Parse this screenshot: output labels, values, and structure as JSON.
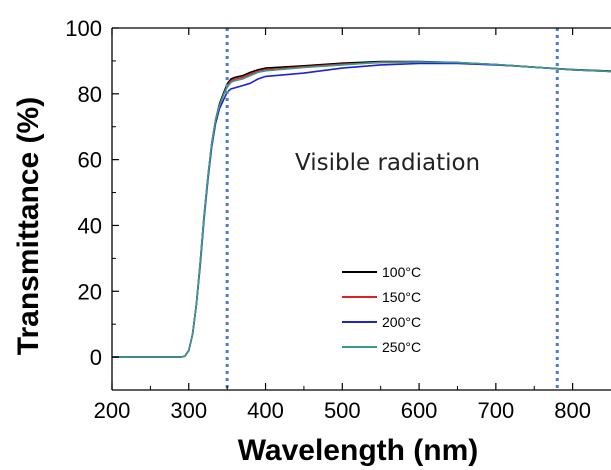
{
  "chart_data": {
    "type": "line",
    "title": "",
    "xlabel": "Wavelength (nm)",
    "ylabel": "Transmittance (%)",
    "xlim": [
      200,
      850
    ],
    "ylim": [
      -10,
      100
    ],
    "x_ticks": [
      200,
      300,
      400,
      500,
      600,
      700,
      800
    ],
    "x_tick_labels": [
      "200",
      "300",
      "400",
      "500",
      "600",
      "700",
      "800"
    ],
    "y_ticks": [
      0,
      20,
      40,
      60,
      80,
      100
    ],
    "y_tick_labels": [
      "0",
      "20",
      "40",
      "60",
      "80",
      "100"
    ],
    "grid": false,
    "legend_position": "lower-center",
    "annotation": "Visible radiation",
    "reference_lines_x": [
      350,
      780
    ],
    "reference_line_color": "#4a7fc1",
    "series": [
      {
        "name": "100°C",
        "color": "#000000",
        "x": [
          200,
          290,
          295,
          300,
          305,
          310,
          315,
          320,
          325,
          330,
          335,
          340,
          345,
          350,
          355,
          360,
          370,
          380,
          390,
          400,
          450,
          500,
          550,
          600,
          650,
          700,
          750,
          800,
          850
        ],
        "y": [
          0,
          0,
          0.3,
          2,
          7,
          16,
          29,
          43,
          55,
          65,
          72,
          77,
          80,
          83,
          84.5,
          85,
          85.5,
          86.5,
          87.3,
          87.8,
          88.5,
          89.3,
          89.8,
          89.8,
          89.5,
          88.9,
          88.1,
          87.4,
          86.9
        ]
      },
      {
        "name": "150°C",
        "color": "#e02020",
        "x": [
          200,
          290,
          295,
          300,
          305,
          310,
          315,
          320,
          325,
          330,
          335,
          340,
          345,
          350,
          355,
          360,
          370,
          380,
          390,
          400,
          450,
          500,
          550,
          600,
          650,
          700,
          750,
          800,
          850
        ],
        "y": [
          0,
          0,
          0.3,
          2,
          7,
          16,
          29,
          43,
          55,
          65,
          72,
          76.5,
          79.5,
          82.5,
          84,
          84.5,
          85,
          86,
          86.8,
          87.3,
          88.2,
          89,
          89.5,
          89.6,
          89.4,
          88.9,
          88.1,
          87.3,
          86.8
        ]
      },
      {
        "name": "200°C",
        "color": "#2020d8",
        "x": [
          200,
          290,
          295,
          300,
          305,
          310,
          315,
          320,
          325,
          330,
          335,
          340,
          345,
          350,
          355,
          360,
          370,
          380,
          390,
          400,
          450,
          500,
          550,
          600,
          650,
          700,
          750,
          800,
          850
        ],
        "y": [
          0,
          0,
          0.3,
          2,
          7,
          16,
          28,
          42,
          54,
          64,
          71,
          75.5,
          78,
          80.5,
          81.5,
          81.8,
          82.5,
          83.2,
          84.5,
          85.3,
          86.3,
          87.8,
          88.8,
          89.2,
          89.2,
          88.8,
          88.1,
          87.3,
          86.8
        ]
      },
      {
        "name": "250°C",
        "color": "#3a9a8e",
        "x": [
          200,
          290,
          295,
          300,
          305,
          310,
          315,
          320,
          325,
          330,
          335,
          340,
          345,
          350,
          355,
          360,
          370,
          380,
          390,
          400,
          450,
          500,
          550,
          600,
          650,
          700,
          750,
          800,
          850
        ],
        "y": [
          0,
          0,
          0.3,
          2,
          7,
          16,
          29,
          43,
          55,
          65,
          72,
          76.5,
          79.5,
          82,
          83.5,
          84,
          84.5,
          85.5,
          86.5,
          87,
          88,
          88.8,
          89.6,
          89.7,
          89.5,
          88.9,
          88.1,
          87.3,
          86.8
        ]
      }
    ]
  }
}
